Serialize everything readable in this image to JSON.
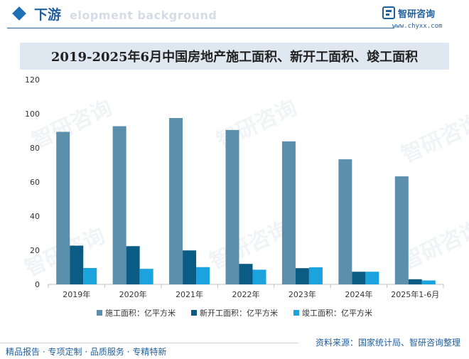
{
  "header": {
    "section_title": "下游",
    "bg_text": "elopment background"
  },
  "brand": {
    "name": "智研咨询",
    "url": "www.chyxx.com"
  },
  "watermark_text": "智研咨询",
  "source": "资料来源：国家统计局、智研咨询整理",
  "footer": {
    "slogan": "精品报告 · 专项定制 · 品质服务 · 专精特新"
  },
  "chart_data": {
    "type": "bar",
    "title": "2019-2025年6月中国房地产施工面积、新开工面积、竣工面积",
    "categories": [
      "2019年",
      "2020年",
      "2021年",
      "2022年",
      "2023年",
      "2024年",
      "2025年1-6月"
    ],
    "ylim": [
      0,
      120
    ],
    "yticks": [
      0,
      20,
      40,
      60,
      80,
      100,
      120
    ],
    "legend_position": "bottom",
    "grid": false,
    "series": [
      {
        "name": "施工面积：亿平方米",
        "color": "#5b8fab",
        "values": [
          89.4,
          92.7,
          97.5,
          90.5,
          83.8,
          73.3,
          63.3
        ]
      },
      {
        "name": "新开工面积：亿平方米",
        "color": "#0b5c84",
        "values": [
          22.7,
          22.4,
          19.9,
          12.0,
          9.5,
          7.4,
          3.0
        ]
      },
      {
        "name": "竣工面积：亿平方米",
        "color": "#1aa3dd",
        "values": [
          9.6,
          9.1,
          10.1,
          8.6,
          10.0,
          7.4,
          2.3
        ]
      }
    ]
  }
}
